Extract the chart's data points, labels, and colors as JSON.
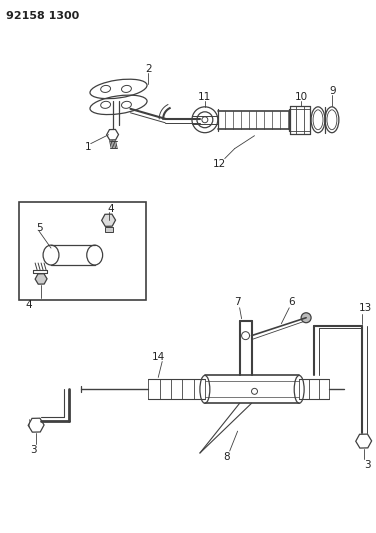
{
  "title_code": "92158 1300",
  "bg_color": "#ffffff",
  "line_color": "#404040",
  "text_color": "#222222",
  "fig_width": 3.76,
  "fig_height": 5.33,
  "dpi": 100
}
